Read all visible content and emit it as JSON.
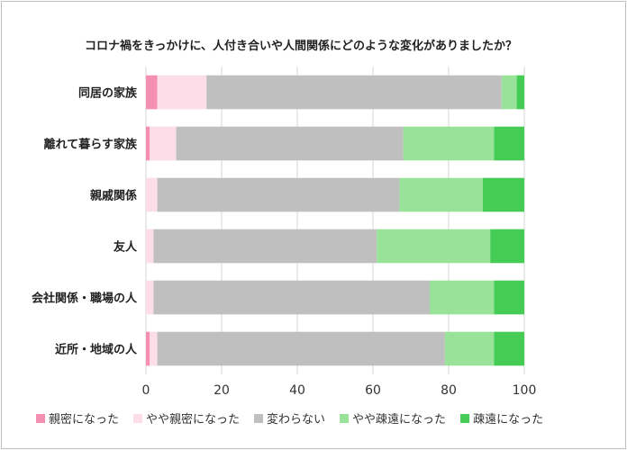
{
  "chart_data": {
    "type": "bar",
    "orientation": "horizontal",
    "stacked": true,
    "title": "コロナ禍をきっかけに、人付き合いや人間関係にどのような変化がありましたか？",
    "categories": [
      "同居の家族",
      "離れて暮らす家族",
      "親戚関係",
      "友人",
      "会社関係・職場の人",
      "近所・地域の人"
    ],
    "series": [
      {
        "name": "親密になった",
        "color": "#f48fb1",
        "values": [
          3,
          1,
          0,
          0,
          0,
          1
        ]
      },
      {
        "name": "やや親密になった",
        "color": "#fddde8",
        "values": [
          13,
          7,
          3,
          2,
          2,
          2
        ]
      },
      {
        "name": "変わらない",
        "color": "#bfbfbf",
        "values": [
          78,
          60,
          64,
          59,
          73,
          76
        ]
      },
      {
        "name": "やや疎遠になった",
        "color": "#98e29a",
        "values": [
          4,
          24,
          22,
          30,
          17,
          13
        ]
      },
      {
        "name": "疎遠になった",
        "color": "#44cc55",
        "values": [
          2,
          8,
          11,
          9,
          8,
          8
        ]
      }
    ],
    "xlim": [
      0,
      100
    ],
    "xticks": [
      "0",
      "20",
      "40",
      "60",
      "80",
      "100"
    ],
    "grid": "vertical",
    "legend_position": "bottom"
  }
}
